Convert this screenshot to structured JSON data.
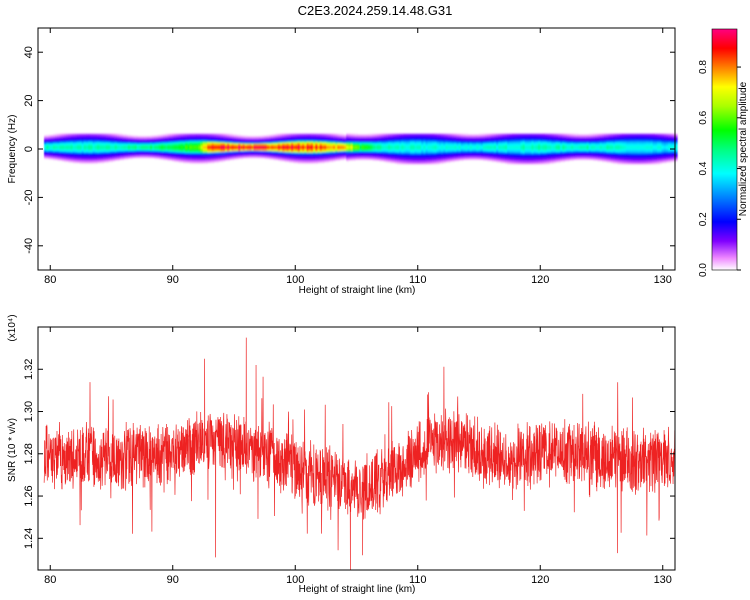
{
  "title": "C2E3.2024.259.14.48.G31",
  "chart_data": [
    {
      "type": "heatmap",
      "xlabel": "Height of straight line (km)",
      "ylabel": "Frequency (Hz)",
      "xlim": [
        79,
        131
      ],
      "ylim": [
        -50,
        50
      ],
      "xticks": [
        "80",
        "90",
        "100",
        "110",
        "120",
        "130"
      ],
      "yticks": [
        "40",
        "20",
        "0",
        "-20",
        "-40"
      ],
      "colorbar": {
        "label": "Normalized spectral amplitude",
        "range": [
          0,
          0.95
        ],
        "ticks": [
          "0.0",
          "0.2",
          "0.4",
          "0.6",
          "0.8"
        ]
      },
      "band": {
        "frequency_center": 0.8,
        "amplitude_profile": {
          "x": [
            79.5,
            82,
            85,
            88,
            90,
            92,
            93,
            95,
            98,
            100,
            102,
            104,
            105,
            107,
            110,
            115,
            120,
            125,
            128,
            131
          ],
          "peak_amplitude": [
            0.45,
            0.45,
            0.45,
            0.5,
            0.55,
            0.6,
            0.9,
            0.92,
            0.9,
            0.9,
            0.85,
            0.8,
            0.6,
            0.45,
            0.42,
            0.42,
            0.45,
            0.45,
            0.4,
            0.4
          ]
        }
      }
    },
    {
      "type": "line",
      "xlabel": "Height of straight line (km)",
      "ylabel": "SNR (10 * v/v)",
      "scale_label": "(x10⁴)",
      "xlim": [
        79,
        131
      ],
      "ylim": [
        1.225,
        1.34
      ],
      "xticks": [
        "80",
        "90",
        "100",
        "110",
        "120",
        "130"
      ],
      "yticks": [
        "1.24",
        "1.26",
        "1.28",
        "1.30",
        "1.32"
      ],
      "series": [
        {
          "color": "#ee2222",
          "x": [
            79.5,
            82,
            85,
            88,
            91,
            93,
            95,
            97,
            99,
            101,
            103,
            105,
            107,
            109,
            111,
            113,
            115,
            117,
            119,
            121,
            123,
            125,
            127,
            129,
            131
          ],
          "y": [
            1.279,
            1.278,
            1.278,
            1.279,
            1.281,
            1.287,
            1.284,
            1.281,
            1.276,
            1.27,
            1.268,
            1.264,
            1.268,
            1.276,
            1.284,
            1.286,
            1.281,
            1.277,
            1.281,
            1.282,
            1.28,
            1.278,
            1.277,
            1.276,
            1.277
          ],
          "noise_amplitude": 0.017,
          "peaks": [
            {
              "x": 96,
              "y": 1.335
            },
            {
              "x": 92.6,
              "y": 1.325
            },
            {
              "x": 96.8,
              "y": 1.322
            }
          ],
          "troughs": [
            {
              "x": 104.5,
              "y": 1.225
            },
            {
              "x": 105.5,
              "y": 1.232
            },
            {
              "x": 93.5,
              "y": 1.231
            },
            {
              "x": 126.3,
              "y": 1.233
            }
          ]
        }
      ]
    }
  ],
  "colors": {
    "series": "#ee2222",
    "band_edge": "#0000ff",
    "frame": "#000000"
  }
}
